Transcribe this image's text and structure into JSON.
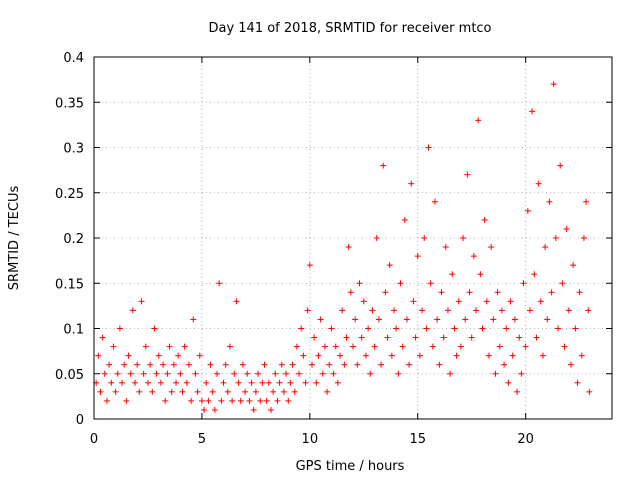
{
  "chart_data": {
    "type": "scatter",
    "title": "Day 141 of 2018, SRMTID for receiver mtco",
    "xlabel": "GPS time / hours",
    "ylabel": "SRMTID / TECUs",
    "xlim": [
      0,
      24
    ],
    "ylim": [
      0,
      0.4
    ],
    "xticks": [
      0,
      5,
      10,
      15,
      20
    ],
    "yticks": [
      0,
      0.05,
      0.1,
      0.15,
      0.2,
      0.25,
      0.3,
      0.35,
      0.4
    ],
    "xtick_labels": [
      "0",
      "5",
      "10",
      "15",
      "20"
    ],
    "ytick_labels": [
      "0",
      "0.05",
      "0.1",
      "0.15",
      "0.2",
      "0.25",
      "0.3",
      "0.35",
      "0.4"
    ],
    "grid": true,
    "marker": "+",
    "color": "#ff0000",
    "series": [
      {
        "name": "SRMTID",
        "points": [
          [
            0.1,
            0.04
          ],
          [
            0.2,
            0.07
          ],
          [
            0.3,
            0.03
          ],
          [
            0.4,
            0.09
          ],
          [
            0.5,
            0.05
          ],
          [
            0.6,
            0.02
          ],
          [
            0.7,
            0.06
          ],
          [
            0.8,
            0.04
          ],
          [
            0.9,
            0.08
          ],
          [
            1.0,
            0.03
          ],
          [
            1.1,
            0.05
          ],
          [
            1.2,
            0.1
          ],
          [
            1.3,
            0.04
          ],
          [
            1.4,
            0.06
          ],
          [
            1.5,
            0.02
          ],
          [
            1.6,
            0.07
          ],
          [
            1.7,
            0.05
          ],
          [
            1.8,
            0.12
          ],
          [
            1.9,
            0.04
          ],
          [
            2.0,
            0.06
          ],
          [
            2.1,
            0.03
          ],
          [
            2.2,
            0.13
          ],
          [
            2.3,
            0.05
          ],
          [
            2.4,
            0.08
          ],
          [
            2.5,
            0.04
          ],
          [
            2.6,
            0.06
          ],
          [
            2.7,
            0.03
          ],
          [
            2.8,
            0.1
          ],
          [
            2.9,
            0.05
          ],
          [
            3.0,
            0.07
          ],
          [
            3.1,
            0.04
          ],
          [
            3.2,
            0.06
          ],
          [
            3.3,
            0.02
          ],
          [
            3.4,
            0.05
          ],
          [
            3.5,
            0.08
          ],
          [
            3.6,
            0.03
          ],
          [
            3.7,
            0.06
          ],
          [
            3.8,
            0.04
          ],
          [
            3.9,
            0.07
          ],
          [
            4.0,
            0.05
          ],
          [
            4.1,
            0.03
          ],
          [
            4.2,
            0.08
          ],
          [
            4.3,
            0.04
          ],
          [
            4.4,
            0.06
          ],
          [
            4.5,
            0.02
          ],
          [
            4.6,
            0.11
          ],
          [
            4.7,
            0.05
          ],
          [
            4.8,
            0.03
          ],
          [
            4.9,
            0.07
          ],
          [
            5.0,
            0.02
          ],
          [
            5.1,
            0.01
          ],
          [
            5.2,
            0.04
          ],
          [
            5.3,
            0.02
          ],
          [
            5.4,
            0.06
          ],
          [
            5.5,
            0.03
          ],
          [
            5.6,
            0.01
          ],
          [
            5.7,
            0.05
          ],
          [
            5.8,
            0.15
          ],
          [
            5.9,
            0.02
          ],
          [
            6.0,
            0.04
          ],
          [
            6.1,
            0.06
          ],
          [
            6.2,
            0.03
          ],
          [
            6.3,
            0.08
          ],
          [
            6.4,
            0.02
          ],
          [
            6.5,
            0.05
          ],
          [
            6.6,
            0.13
          ],
          [
            6.7,
            0.04
          ],
          [
            6.8,
            0.02
          ],
          [
            6.9,
            0.06
          ],
          [
            7.0,
            0.03
          ],
          [
            7.1,
            0.05
          ],
          [
            7.2,
            0.02
          ],
          [
            7.3,
            0.04
          ],
          [
            7.4,
            0.01
          ],
          [
            7.5,
            0.03
          ],
          [
            7.6,
            0.05
          ],
          [
            7.7,
            0.02
          ],
          [
            7.8,
            0.04
          ],
          [
            7.9,
            0.06
          ],
          [
            8.0,
            0.02
          ],
          [
            8.1,
            0.04
          ],
          [
            8.2,
            0.01
          ],
          [
            8.3,
            0.03
          ],
          [
            8.4,
            0.05
          ],
          [
            8.5,
            0.02
          ],
          [
            8.6,
            0.04
          ],
          [
            8.7,
            0.06
          ],
          [
            8.8,
            0.03
          ],
          [
            8.9,
            0.05
          ],
          [
            9.0,
            0.02
          ],
          [
            9.1,
            0.04
          ],
          [
            9.2,
            0.06
          ],
          [
            9.3,
            0.03
          ],
          [
            9.4,
            0.08
          ],
          [
            9.5,
            0.05
          ],
          [
            9.6,
            0.1
          ],
          [
            9.7,
            0.07
          ],
          [
            9.8,
            0.04
          ],
          [
            9.9,
            0.12
          ],
          [
            10.0,
            0.17
          ],
          [
            10.1,
            0.06
          ],
          [
            10.2,
            0.09
          ],
          [
            10.3,
            0.04
          ],
          [
            10.4,
            0.07
          ],
          [
            10.5,
            0.11
          ],
          [
            10.6,
            0.05
          ],
          [
            10.7,
            0.08
          ],
          [
            10.8,
            0.03
          ],
          [
            10.9,
            0.06
          ],
          [
            11.0,
            0.1
          ],
          [
            11.1,
            0.05
          ],
          [
            11.2,
            0.08
          ],
          [
            11.3,
            0.04
          ],
          [
            11.4,
            0.07
          ],
          [
            11.5,
            0.12
          ],
          [
            11.6,
            0.06
          ],
          [
            11.7,
            0.09
          ],
          [
            11.8,
            0.19
          ],
          [
            11.9,
            0.14
          ],
          [
            12.0,
            0.08
          ],
          [
            12.1,
            0.11
          ],
          [
            12.2,
            0.06
          ],
          [
            12.3,
            0.15
          ],
          [
            12.4,
            0.09
          ],
          [
            12.5,
            0.13
          ],
          [
            12.6,
            0.07
          ],
          [
            12.7,
            0.1
          ],
          [
            12.8,
            0.05
          ],
          [
            12.9,
            0.12
          ],
          [
            13.0,
            0.08
          ],
          [
            13.1,
            0.2
          ],
          [
            13.2,
            0.11
          ],
          [
            13.3,
            0.06
          ],
          [
            13.4,
            0.28
          ],
          [
            13.5,
            0.14
          ],
          [
            13.6,
            0.09
          ],
          [
            13.7,
            0.17
          ],
          [
            13.8,
            0.07
          ],
          [
            13.9,
            0.12
          ],
          [
            14.0,
            0.1
          ],
          [
            14.1,
            0.05
          ],
          [
            14.2,
            0.15
          ],
          [
            14.3,
            0.08
          ],
          [
            14.4,
            0.22
          ],
          [
            14.5,
            0.11
          ],
          [
            14.6,
            0.06
          ],
          [
            14.7,
            0.26
          ],
          [
            14.8,
            0.13
          ],
          [
            14.9,
            0.09
          ],
          [
            15.0,
            0.18
          ],
          [
            15.1,
            0.07
          ],
          [
            15.2,
            0.12
          ],
          [
            15.3,
            0.2
          ],
          [
            15.4,
            0.1
          ],
          [
            15.5,
            0.3
          ],
          [
            15.6,
            0.15
          ],
          [
            15.7,
            0.08
          ],
          [
            15.8,
            0.24
          ],
          [
            15.9,
            0.11
          ],
          [
            16.0,
            0.06
          ],
          [
            16.1,
            0.14
          ],
          [
            16.2,
            0.09
          ],
          [
            16.3,
            0.19
          ],
          [
            16.4,
            0.12
          ],
          [
            16.5,
            0.05
          ],
          [
            16.6,
            0.16
          ],
          [
            16.7,
            0.1
          ],
          [
            16.8,
            0.07
          ],
          [
            16.9,
            0.13
          ],
          [
            17.0,
            0.08
          ],
          [
            17.1,
            0.2
          ],
          [
            17.2,
            0.11
          ],
          [
            17.3,
            0.27
          ],
          [
            17.4,
            0.14
          ],
          [
            17.5,
            0.09
          ],
          [
            17.6,
            0.18
          ],
          [
            17.7,
            0.12
          ],
          [
            17.8,
            0.33
          ],
          [
            17.9,
            0.16
          ],
          [
            18.0,
            0.1
          ],
          [
            18.1,
            0.22
          ],
          [
            18.2,
            0.13
          ],
          [
            18.3,
            0.07
          ],
          [
            18.4,
            0.19
          ],
          [
            18.5,
            0.11
          ],
          [
            18.6,
            0.05
          ],
          [
            18.7,
            0.14
          ],
          [
            18.8,
            0.08
          ],
          [
            18.9,
            0.12
          ],
          [
            19.0,
            0.06
          ],
          [
            19.1,
            0.1
          ],
          [
            19.2,
            0.04
          ],
          [
            19.3,
            0.13
          ],
          [
            19.4,
            0.07
          ],
          [
            19.5,
            0.11
          ],
          [
            19.6,
            0.03
          ],
          [
            19.7,
            0.09
          ],
          [
            19.8,
            0.05
          ],
          [
            19.9,
            0.15
          ],
          [
            20.0,
            0.08
          ],
          [
            20.1,
            0.23
          ],
          [
            20.2,
            0.12
          ],
          [
            20.3,
            0.34
          ],
          [
            20.4,
            0.16
          ],
          [
            20.5,
            0.09
          ],
          [
            20.6,
            0.26
          ],
          [
            20.7,
            0.13
          ],
          [
            20.8,
            0.07
          ],
          [
            20.9,
            0.19
          ],
          [
            21.0,
            0.11
          ],
          [
            21.1,
            0.24
          ],
          [
            21.2,
            0.14
          ],
          [
            21.3,
            0.37
          ],
          [
            21.4,
            0.2
          ],
          [
            21.5,
            0.1
          ],
          [
            21.6,
            0.28
          ],
          [
            21.7,
            0.15
          ],
          [
            21.8,
            0.08
          ],
          [
            21.9,
            0.21
          ],
          [
            22.0,
            0.12
          ],
          [
            22.1,
            0.06
          ],
          [
            22.2,
            0.17
          ],
          [
            22.3,
            0.1
          ],
          [
            22.4,
            0.04
          ],
          [
            22.5,
            0.14
          ],
          [
            22.6,
            0.07
          ],
          [
            22.7,
            0.2
          ],
          [
            22.8,
            0.24
          ],
          [
            22.9,
            0.12
          ],
          [
            22.95,
            0.03
          ]
        ]
      }
    ]
  }
}
